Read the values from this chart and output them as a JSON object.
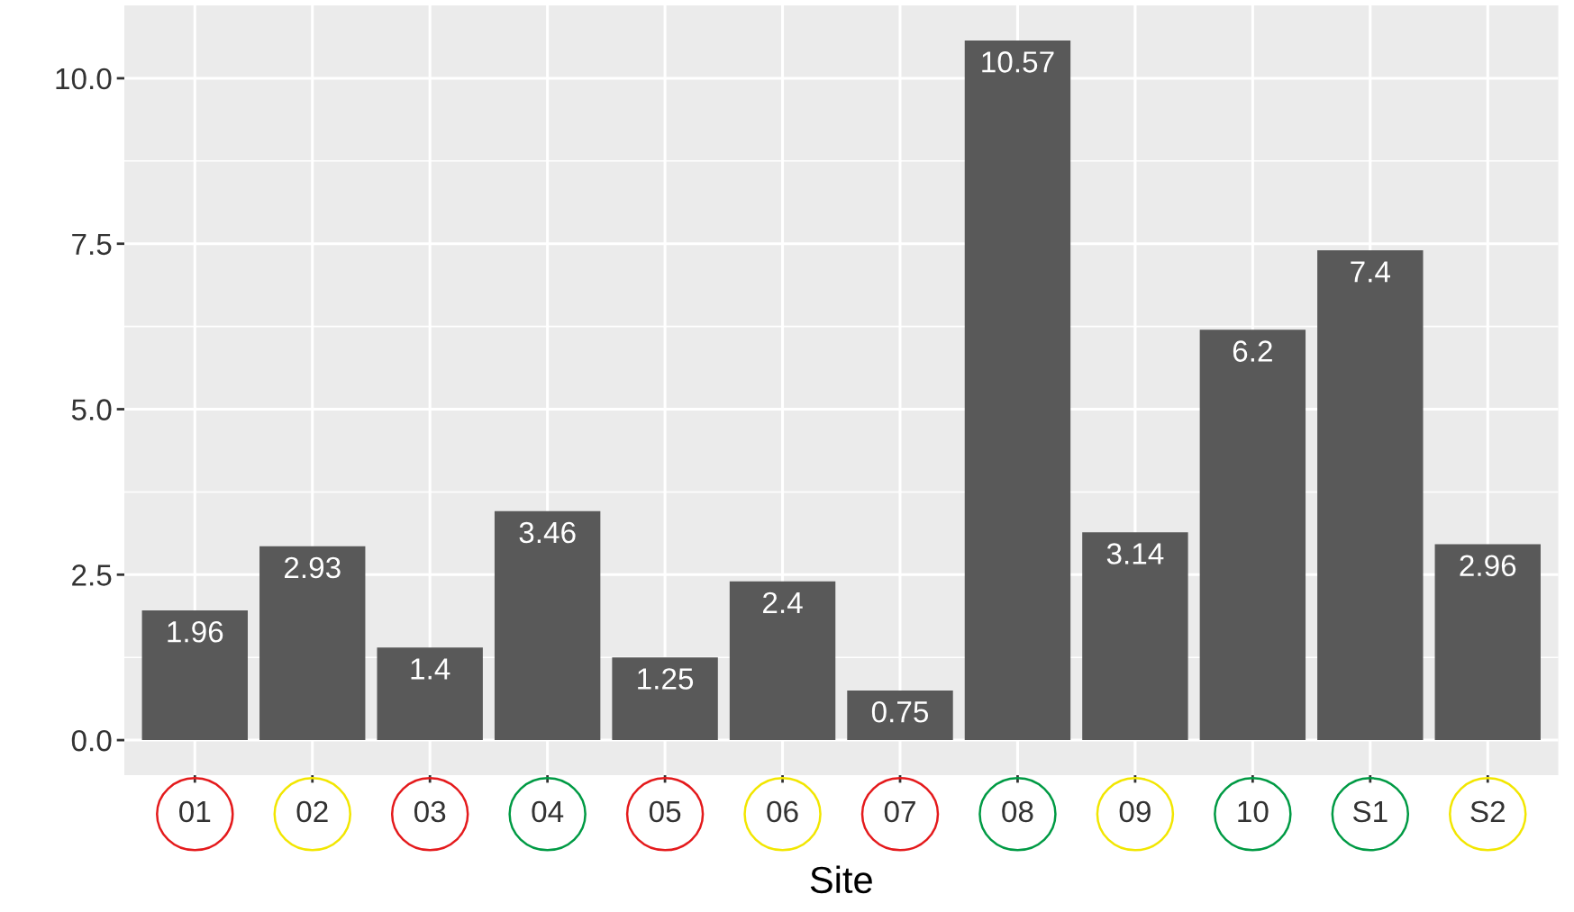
{
  "chart_data": {
    "type": "bar",
    "xlabel": "Site",
    "categories": [
      "01",
      "02",
      "03",
      "04",
      "05",
      "06",
      "07",
      "08",
      "09",
      "10",
      "S1",
      "S2"
    ],
    "values": [
      1.96,
      2.93,
      1.4,
      3.46,
      1.25,
      2.4,
      0.75,
      10.57,
      3.14,
      6.2,
      7.4,
      2.96
    ],
    "color": "#595959",
    "ylim": [
      -0.53,
      11.1
    ],
    "yticks": [
      {
        "value": 0,
        "label": "0.0"
      },
      {
        "value": 2.5,
        "label": "2.5"
      },
      {
        "value": 5,
        "label": "5.0"
      },
      {
        "value": 7.5,
        "label": "7.5"
      },
      {
        "value": 10,
        "label": "10.0"
      }
    ],
    "grid": true,
    "data_labels": true
  }
}
